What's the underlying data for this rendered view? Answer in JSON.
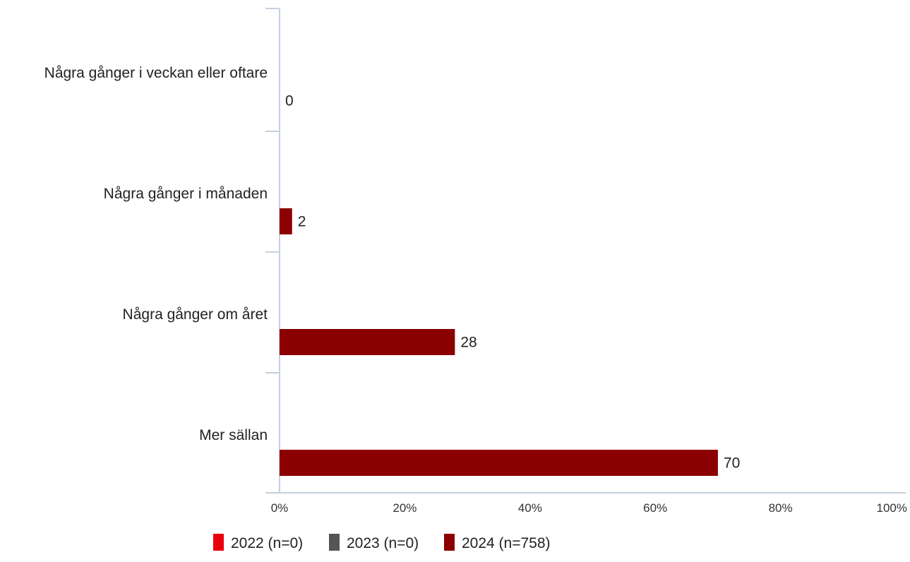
{
  "chart_data": {
    "type": "bar",
    "orientation": "horizontal",
    "categories": [
      "Några gånger i veckan eller oftare",
      "Några gånger i månaden",
      "Några gånger om året",
      "Mer sällan"
    ],
    "series": [
      {
        "name": "2022 (n=0)",
        "color": "#e8000b",
        "values": [
          null,
          null,
          null,
          null
        ]
      },
      {
        "name": "2023 (n=0)",
        "color": "#555555",
        "values": [
          null,
          null,
          null,
          null
        ]
      },
      {
        "name": "2024 (n=758)",
        "color": "#8b0000",
        "values": [
          0,
          2,
          28,
          70
        ]
      }
    ],
    "x_ticks": [
      "0%",
      "20%",
      "40%",
      "60%",
      "80%",
      "100%"
    ],
    "xlim": [
      0,
      100
    ],
    "axis_color": "#c5d0e0",
    "grid": false,
    "legend_position": "bottom"
  }
}
